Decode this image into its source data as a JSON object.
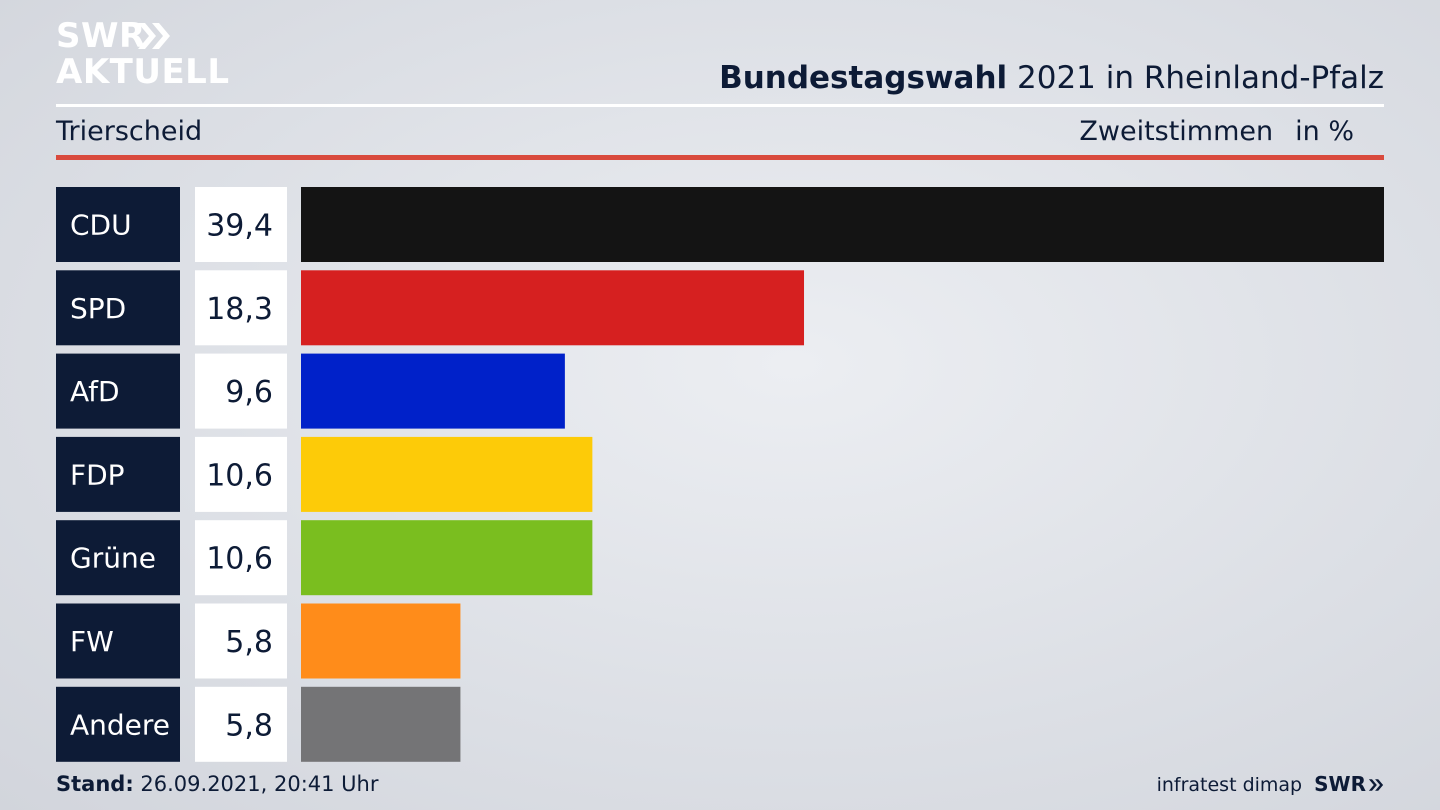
{
  "brand": {
    "logo_line1": "SWR",
    "logo_line2": "AKTUELL",
    "footer_logo": "SWR"
  },
  "header": {
    "title_bold": "Bundestagswahl",
    "title_rest": " 2021 in Rheinland-Pfalz",
    "region": "Trierscheid",
    "vote_type": "Zweitstimmen",
    "unit": "in %"
  },
  "footer": {
    "stand_label": "Stand:",
    "stand_value": " 26.09.2021, 20:41 Uhr",
    "source": "infratest dimap"
  },
  "colors": {
    "label_box": "#0d1b36",
    "accent_rule": "#d94a3d"
  },
  "chart_data": {
    "type": "bar",
    "orientation": "horizontal",
    "categories": [
      "CDU",
      "SPD",
      "AfD",
      "FDP",
      "Grüne",
      "FW",
      "Andere"
    ],
    "values": [
      39.4,
      18.3,
      9.6,
      10.6,
      10.6,
      5.8,
      5.8
    ],
    "value_labels": [
      "39,4",
      "18,3",
      "9,6",
      "10,6",
      "10,6",
      "5,8",
      "5,8"
    ],
    "colors": [
      "#141414",
      "#d62020",
      "#0021c9",
      "#fdcb08",
      "#7abe1f",
      "#ff8c1a",
      "#747476"
    ],
    "xlim": [
      0,
      39.4
    ],
    "grid": false,
    "legend": "none"
  }
}
